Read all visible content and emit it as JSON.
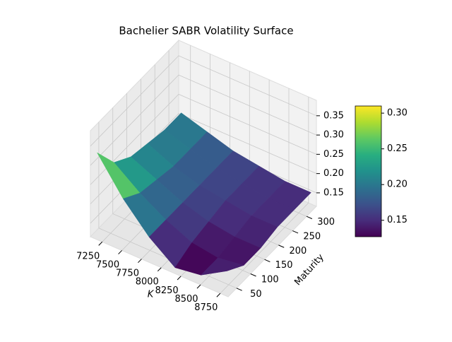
{
  "chart_data": {
    "type": "surface",
    "title": "Bachelier SABR Volatility Surface",
    "xlabel": "K",
    "ylabel": "Maturity",
    "x": [
      7150,
      7480,
      7810,
      8140,
      8470,
      8800
    ],
    "y": [
      30,
      90,
      150,
      210,
      270,
      330
    ],
    "z": [
      [
        0.33,
        0.24,
        0.17,
        0.12,
        0.13,
        0.17
      ],
      [
        0.26,
        0.21,
        0.17,
        0.14,
        0.13,
        0.14
      ],
      [
        0.23,
        0.2,
        0.17,
        0.15,
        0.14,
        0.14
      ],
      [
        0.22,
        0.19,
        0.17,
        0.16,
        0.15,
        0.15
      ],
      [
        0.21,
        0.19,
        0.17,
        0.16,
        0.15,
        0.15
      ],
      [
        0.21,
        0.19,
        0.17,
        0.16,
        0.15,
        0.15
      ]
    ],
    "xlim": [
      7100,
      8850
    ],
    "ylim": [
      20,
      335
    ],
    "zlim": [
      0.115,
      0.39
    ],
    "xticks": [
      7250,
      7500,
      7750,
      8000,
      8250,
      8500,
      8750
    ],
    "yticks": [
      50,
      100,
      150,
      200,
      250,
      300
    ],
    "zticks": [
      0.15,
      {
        "value": 0.2,
        "label": "0.20"
      },
      0.25,
      {
        "value": 0.3,
        "label": "0.30"
      },
      0.35
    ],
    "colormap": "viridis",
    "clim": [
      0.127,
      0.31
    ],
    "cticks": [
      0.15,
      {
        "value": 0.2,
        "label": "0.20"
      },
      0.25,
      {
        "value": 0.3,
        "label": "0.30"
      }
    ],
    "grid": true
  }
}
